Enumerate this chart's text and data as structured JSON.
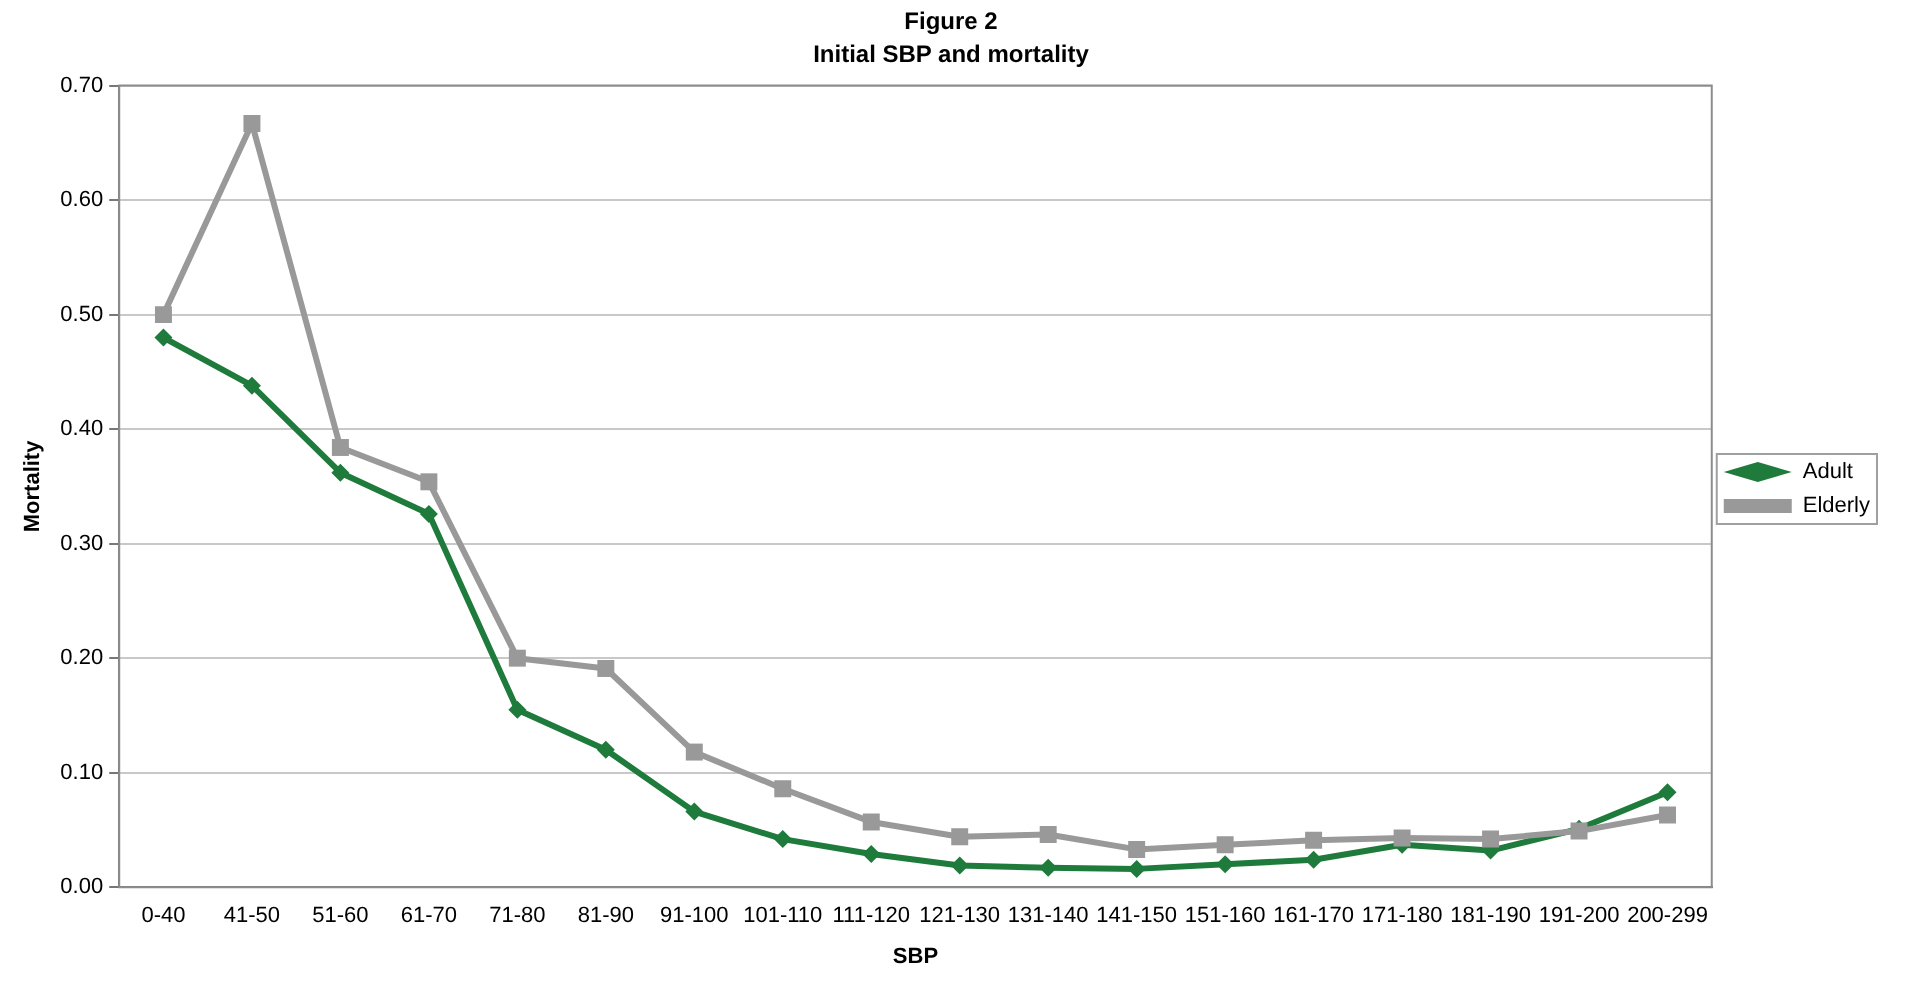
{
  "chart_data": {
    "type": "line",
    "title": "Figure 2",
    "subtitle": "Initial SBP and mortality",
    "xlabel": "SBP",
    "ylabel": "Mortality",
    "categories": [
      "0-40",
      "41-50",
      "51-60",
      "61-70",
      "71-80",
      "81-90",
      "91-100",
      "101-110",
      "111-120",
      "121-130",
      "131-140",
      "141-150",
      "151-160",
      "161-170",
      "171-180",
      "181-190",
      "191-200",
      "200-299"
    ],
    "series": [
      {
        "name": "Adult",
        "color": "#1e7b3c",
        "marker": "diamond",
        "values": [
          0.48,
          0.438,
          0.362,
          0.326,
          0.155,
          0.12,
          0.066,
          0.042,
          0.029,
          0.019,
          0.017,
          0.016,
          0.02,
          0.024,
          0.037,
          0.032,
          0.051,
          0.083
        ]
      },
      {
        "name": "Elderly",
        "color": "#999999",
        "marker": "square",
        "values": [
          0.5,
          0.667,
          0.384,
          0.354,
          0.2,
          0.191,
          0.118,
          0.086,
          0.057,
          0.044,
          0.046,
          0.033,
          0.037,
          0.041,
          0.043,
          0.042,
          0.049,
          0.063
        ]
      }
    ],
    "ylim": [
      0,
      0.7
    ],
    "yticks": [
      {
        "value": 0,
        "label": "0.00"
      },
      {
        "value": 0.1,
        "label": "0.10"
      },
      {
        "value": 0.2,
        "label": "0.20"
      },
      {
        "value": 0.3,
        "label": "0.30"
      },
      {
        "value": 0.4,
        "label": "0.40"
      },
      {
        "value": 0.5,
        "label": "0.50"
      },
      {
        "value": 0.6,
        "label": "0.60"
      },
      {
        "value": 0.7,
        "label": "0.70"
      }
    ],
    "grid": "y",
    "legend": "right",
    "line_style": "solid"
  }
}
